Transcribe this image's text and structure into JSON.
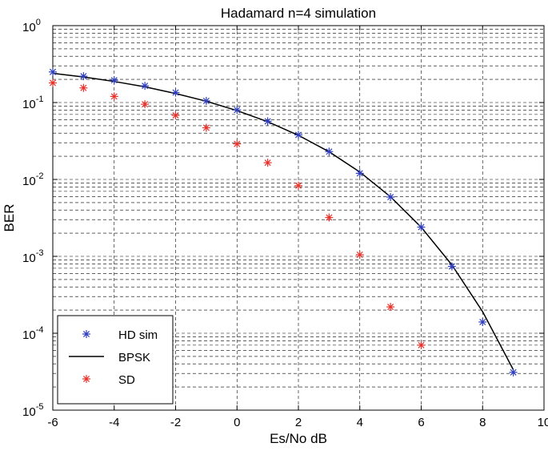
{
  "chart_data": {
    "type": "scatter",
    "title": "Hadamard n=4  simulation",
    "xlabel": "Es/No dB",
    "ylabel": "BER",
    "xlim": [
      -6,
      10
    ],
    "ylim": [
      1e-05,
      1
    ],
    "yscale": "log",
    "grid": true,
    "legend_position": "bottom-left",
    "x_ticks": [
      {
        "value": -6,
        "label": "-6"
      },
      {
        "value": -4,
        "label": "-4"
      },
      {
        "value": -2,
        "label": "-2"
      },
      {
        "value": 0,
        "label": "0"
      },
      {
        "value": 2,
        "label": "2"
      },
      {
        "value": 4,
        "label": "4"
      },
      {
        "value": 6,
        "label": "6"
      },
      {
        "value": 8,
        "label": "8"
      },
      {
        "value": 10,
        "label": "10"
      }
    ],
    "y_ticks": [
      {
        "exp": 0,
        "base": "10",
        "sup": "0"
      },
      {
        "exp": -1,
        "base": "10",
        "sup": "-1"
      },
      {
        "exp": -2,
        "base": "10",
        "sup": "-2"
      },
      {
        "exp": -3,
        "base": "10",
        "sup": "-3"
      },
      {
        "exp": -4,
        "base": "10",
        "sup": "-4"
      },
      {
        "exp": -5,
        "base": "10",
        "sup": "-5"
      }
    ],
    "series": [
      {
        "name": "HD sim",
        "kind": "marker",
        "marker": "*",
        "color": "#2f3fbf",
        "points": [
          {
            "x": -6,
            "y": 0.25
          },
          {
            "x": -5,
            "y": 0.22
          },
          {
            "x": -4,
            "y": 0.195
          },
          {
            "x": -3,
            "y": 0.165
          },
          {
            "x": -2,
            "y": 0.135
          },
          {
            "x": -1,
            "y": 0.105
          },
          {
            "x": 0,
            "y": 0.08
          },
          {
            "x": 1,
            "y": 0.057
          },
          {
            "x": 2,
            "y": 0.038
          },
          {
            "x": 3,
            "y": 0.023
          },
          {
            "x": 4,
            "y": 0.012
          },
          {
            "x": 5,
            "y": 0.0059
          },
          {
            "x": 6,
            "y": 0.0024
          },
          {
            "x": 7,
            "y": 0.00074
          },
          {
            "x": 8,
            "y": 0.00014
          },
          {
            "x": 9,
            "y": 3.1e-05
          }
        ]
      },
      {
        "name": "BPSK",
        "kind": "line",
        "color": "#000000",
        "points": [
          {
            "x": -6,
            "y": 0.24
          },
          {
            "x": -5,
            "y": 0.215
          },
          {
            "x": -4,
            "y": 0.188
          },
          {
            "x": -3,
            "y": 0.16
          },
          {
            "x": -2,
            "y": 0.131
          },
          {
            "x": -1,
            "y": 0.104
          },
          {
            "x": 0,
            "y": 0.0786
          },
          {
            "x": 1,
            "y": 0.0563
          },
          {
            "x": 2,
            "y": 0.0375
          },
          {
            "x": 3,
            "y": 0.0229
          },
          {
            "x": 4,
            "y": 0.0125
          },
          {
            "x": 5,
            "y": 0.00595
          },
          {
            "x": 6,
            "y": 0.00239
          },
          {
            "x": 7,
            "y": 0.000773
          },
          {
            "x": 8,
            "y": 0.000191
          },
          {
            "x": 9,
            "y": 3.36e-05
          }
        ]
      },
      {
        "name": "SD",
        "kind": "marker",
        "marker": "*",
        "color": "#e8322b",
        "points": [
          {
            "x": -6,
            "y": 0.18
          },
          {
            "x": -5,
            "y": 0.155
          },
          {
            "x": -4,
            "y": 0.12
          },
          {
            "x": -3,
            "y": 0.095
          },
          {
            "x": -2,
            "y": 0.068
          },
          {
            "x": -1,
            "y": 0.047
          },
          {
            "x": 0,
            "y": 0.029
          },
          {
            "x": 1,
            "y": 0.0165
          },
          {
            "x": 2,
            "y": 0.0083
          },
          {
            "x": 3,
            "y": 0.0032
          },
          {
            "x": 4,
            "y": 0.00105
          },
          {
            "x": 5,
            "y": 0.00022
          },
          {
            "x": 6,
            "y": 7e-05
          }
        ]
      }
    ]
  }
}
